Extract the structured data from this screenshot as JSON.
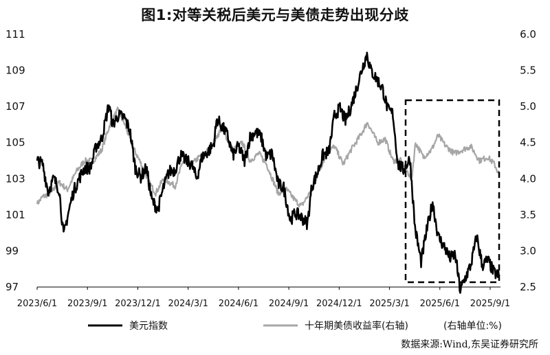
{
  "chart_data": {
    "type": "line",
    "title": "图1:对等关税后美元与美债走势出现分歧",
    "y_left": {
      "ticks": [
        "111",
        "109",
        "107",
        "105",
        "103",
        "101",
        "99",
        "97"
      ],
      "range": [
        97,
        111
      ]
    },
    "y_right": {
      "ticks": [
        "6.0",
        "5.5",
        "5.0",
        "4.5",
        "4.0",
        "3.5",
        "3.0",
        "2.5"
      ],
      "range": [
        2.5,
        6.0
      ],
      "unit_note": "(右轴单位:%)"
    },
    "x_ticks": [
      "2023/6/1",
      "2023/9/1",
      "2023/12/1",
      "2024/3/1",
      "2024/6/1",
      "2024/9/1",
      "2024/12/1",
      "2025/3/1",
      "2025/6/1",
      "2025/9/1"
    ],
    "x_range": [
      "2023-05-26",
      "2025-09-12"
    ],
    "grid": false,
    "legend_position": "bottom",
    "series": [
      {
        "name": "美元指数",
        "axis": "left",
        "color": "#000000",
        "x": [
          "2023-05-26",
          "2023-06-05",
          "2023-06-15",
          "2023-06-25",
          "2023-07-05",
          "2023-07-13",
          "2023-07-20",
          "2023-07-31",
          "2023-08-10",
          "2023-08-20",
          "2023-08-31",
          "2023-09-10",
          "2023-09-20",
          "2023-10-03",
          "2023-10-10",
          "2023-10-20",
          "2023-10-31",
          "2023-11-10",
          "2023-11-20",
          "2023-11-30",
          "2023-12-10",
          "2023-12-20",
          "2023-12-31",
          "2024-01-10",
          "2024-01-20",
          "2024-01-31",
          "2024-02-10",
          "2024-02-20",
          "2024-03-01",
          "2024-03-10",
          "2024-03-20",
          "2024-03-31",
          "2024-04-10",
          "2024-04-16",
          "2024-04-25",
          "2024-05-05",
          "2024-05-15",
          "2024-05-25",
          "2024-06-05",
          "2024-06-15",
          "2024-06-25",
          "2024-07-05",
          "2024-07-15",
          "2024-07-25",
          "2024-08-05",
          "2024-08-15",
          "2024-08-27",
          "2024-09-05",
          "2024-09-15",
          "2024-09-27",
          "2024-10-05",
          "2024-10-15",
          "2024-10-25",
          "2024-11-05",
          "2024-11-15",
          "2024-11-25",
          "2024-12-05",
          "2024-12-15",
          "2024-12-25",
          "2025-01-05",
          "2025-01-13",
          "2025-01-20",
          "2025-01-31",
          "2025-02-10",
          "2025-02-20",
          "2025-03-01",
          "2025-03-10",
          "2025-03-20",
          "2025-04-01",
          "2025-04-10",
          "2025-04-21",
          "2025-05-01",
          "2025-05-12",
          "2025-05-22",
          "2025-06-01",
          "2025-06-12",
          "2025-06-22",
          "2025-07-01",
          "2025-07-10",
          "2025-07-20",
          "2025-07-31",
          "2025-08-10",
          "2025-08-20",
          "2025-08-31",
          "2025-09-10"
        ],
        "values": [
          104.0,
          103.8,
          102.3,
          103.0,
          102.4,
          99.8,
          100.9,
          102.3,
          103.0,
          103.6,
          103.6,
          104.8,
          105.2,
          107.1,
          106.0,
          106.5,
          106.4,
          105.7,
          103.6,
          103.1,
          103.6,
          101.8,
          101.3,
          102.5,
          103.4,
          103.5,
          104.3,
          104.0,
          103.8,
          103.0,
          104.2,
          104.5,
          104.9,
          106.3,
          105.9,
          105.4,
          104.3,
          104.8,
          104.0,
          105.3,
          105.6,
          105.3,
          104.2,
          104.4,
          102.7,
          102.5,
          100.7,
          101.1,
          100.9,
          100.5,
          102.6,
          103.3,
          104.3,
          104.5,
          106.5,
          106.9,
          106.2,
          107.0,
          108.0,
          109.2,
          109.9,
          109.0,
          108.5,
          108.0,
          106.8,
          106.6,
          103.8,
          103.5,
          104.1,
          100.3,
          98.4,
          100.1,
          101.7,
          99.8,
          99.3,
          98.6,
          98.8,
          96.8,
          97.5,
          98.2,
          99.8,
          98.2,
          98.5,
          97.8,
          97.6
        ],
        "noise": 0.35
      },
      {
        "name": "十年期美债收益率(右轴)",
        "axis": "right",
        "color": "#a6a6a6",
        "x": [
          "2023-05-26",
          "2023-06-05",
          "2023-06-20",
          "2023-07-05",
          "2023-07-20",
          "2023-08-05",
          "2023-08-20",
          "2023-09-05",
          "2023-09-20",
          "2023-10-05",
          "2023-10-19",
          "2023-11-01",
          "2023-11-15",
          "2023-12-01",
          "2023-12-15",
          "2023-12-27",
          "2024-01-10",
          "2024-01-31",
          "2024-02-15",
          "2024-03-01",
          "2024-03-15",
          "2024-04-01",
          "2024-04-25",
          "2024-05-15",
          "2024-06-01",
          "2024-06-15",
          "2024-07-01",
          "2024-07-15",
          "2024-08-05",
          "2024-08-20",
          "2024-09-05",
          "2024-09-16",
          "2024-10-01",
          "2024-10-15",
          "2024-11-01",
          "2024-11-15",
          "2024-12-01",
          "2024-12-15",
          "2025-01-01",
          "2025-01-14",
          "2025-02-01",
          "2025-02-15",
          "2025-03-01",
          "2025-03-15",
          "2025-04-04",
          "2025-04-11",
          "2025-04-25",
          "2025-05-10",
          "2025-05-22",
          "2025-06-05",
          "2025-06-20",
          "2025-07-05",
          "2025-07-20",
          "2025-08-05",
          "2025-08-20",
          "2025-09-01",
          "2025-09-10"
        ],
        "values": [
          3.65,
          3.75,
          3.8,
          3.95,
          3.85,
          4.1,
          4.25,
          4.25,
          4.4,
          4.75,
          4.95,
          4.75,
          4.45,
          4.2,
          3.95,
          3.8,
          4.0,
          3.9,
          4.25,
          4.2,
          4.3,
          4.4,
          4.7,
          4.4,
          4.5,
          4.25,
          4.35,
          4.2,
          3.8,
          3.85,
          3.7,
          3.62,
          3.8,
          4.05,
          4.35,
          4.45,
          4.2,
          4.4,
          4.6,
          4.78,
          4.5,
          4.55,
          4.25,
          4.25,
          4.0,
          4.5,
          4.3,
          4.4,
          4.6,
          4.45,
          4.35,
          4.4,
          4.45,
          4.25,
          4.3,
          4.2,
          4.05
        ],
        "noise": 0.04
      }
    ],
    "annotation": "dashed box marks period from 2025/3 onward"
  },
  "source": "数据来源:Wind,东吴证券研究所"
}
